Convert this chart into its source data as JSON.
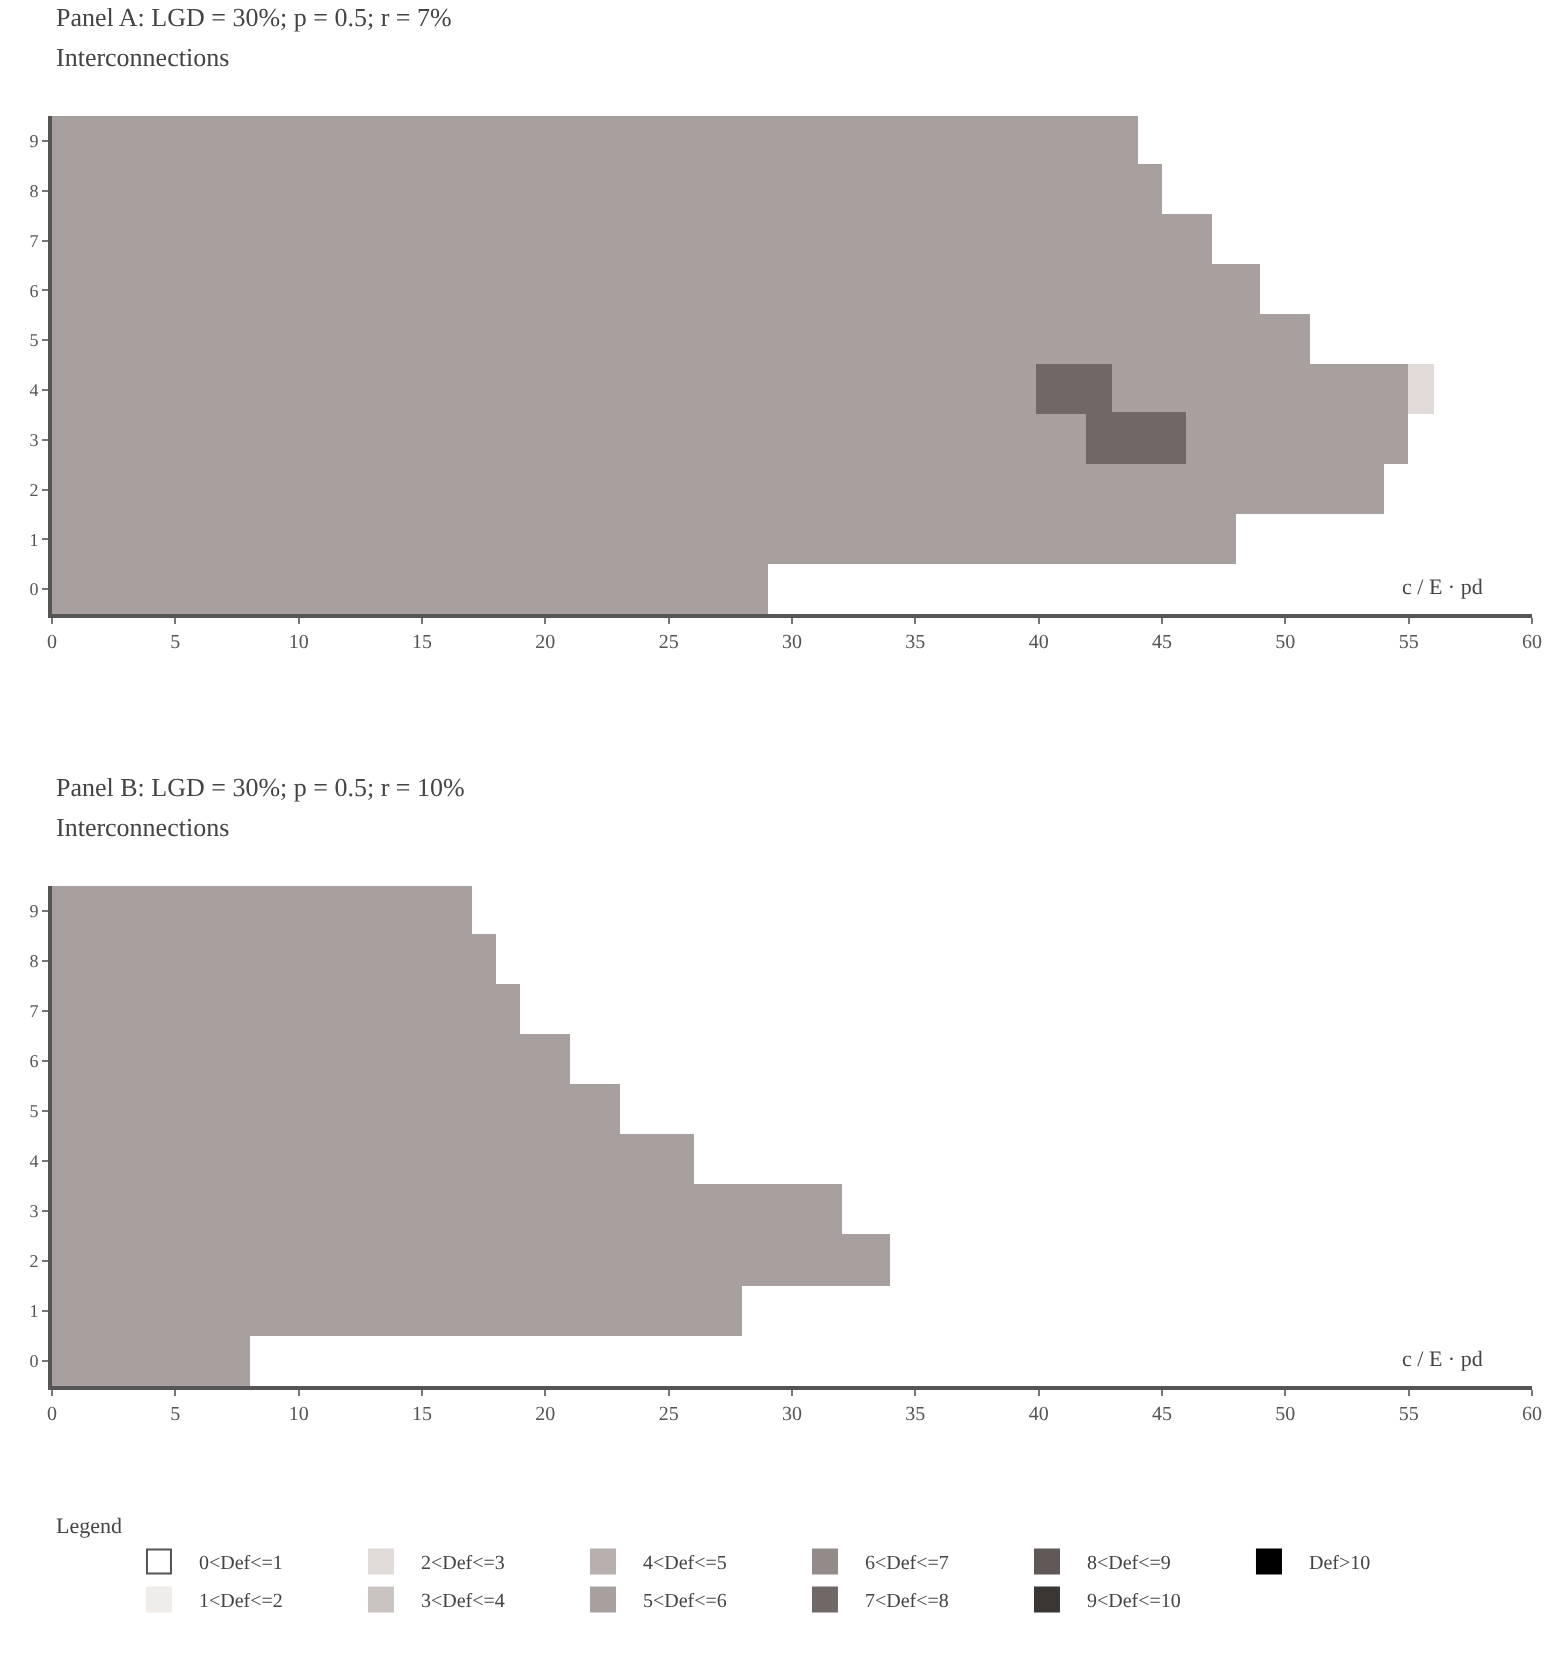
{
  "chart_data": [
    {
      "type": "bar",
      "orientation": "horizontal",
      "title": "Panel A: LGD = 30%; p = 0.5; r = 7%",
      "ylabel": "Interconnections",
      "xlabel": "c / E · pd",
      "categories": [
        "9",
        "8",
        "7",
        "6",
        "5",
        "4",
        "3",
        "2",
        "1",
        "0"
      ],
      "xlim": [
        0,
        60
      ],
      "xticks": [
        0,
        5,
        10,
        15,
        20,
        25,
        30,
        35,
        40,
        45,
        50,
        55,
        60
      ],
      "legend": "bottom",
      "legend_title": "Legend",
      "series": [
        {
          "name": "0<Def<=1",
          "color": "#ffffff",
          "values": [
            null,
            null,
            null,
            null,
            null,
            null,
            null,
            null,
            null,
            null
          ]
        },
        {
          "name": "2<Def<=3",
          "color": "#e0dad8",
          "values": [
            null,
            null,
            null,
            null,
            null,
            1,
            null,
            null,
            null,
            null
          ],
          "base": [
            null,
            null,
            null,
            null,
            null,
            55,
            null,
            null,
            null,
            null
          ]
        },
        {
          "name": "4<Def<=5",
          "color": "#b8b0ae",
          "values": [
            null,
            null,
            null,
            null,
            null,
            null,
            null,
            null,
            null,
            null
          ]
        },
        {
          "name": "6<Def<=7",
          "color": "#938b89",
          "values": [
            null,
            null,
            null,
            null,
            null,
            null,
            null,
            null,
            null,
            null
          ]
        },
        {
          "name": "8<Def<=9",
          "color": "#605856",
          "values": [
            null,
            null,
            null,
            null,
            null,
            null,
            null,
            null,
            null,
            null
          ]
        },
        {
          "name": "Def>10",
          "color": "#000000",
          "values": [
            null,
            null,
            null,
            null,
            null,
            null,
            null,
            null,
            null,
            null
          ]
        },
        {
          "name": "1<Def<=2",
          "color": "#efecea",
          "values": [
            null,
            null,
            null,
            null,
            null,
            null,
            null,
            null,
            null,
            null
          ]
        },
        {
          "name": "3<Def<=4",
          "color": "#cbc3c1",
          "values": [
            null,
            null,
            null,
            null,
            null,
            null,
            null,
            null,
            null,
            null
          ]
        },
        {
          "name": "5<Def<=6",
          "color": "#a8a09e",
          "values": [
            44,
            45,
            47,
            49,
            51,
            40,
            42,
            54,
            48,
            29
          ],
          "base": [
            0,
            0,
            0,
            0,
            0,
            0,
            0,
            0,
            0,
            0
          ]
        },
        {
          "color": "#a8a09e",
          "values": [
            null,
            null,
            null,
            null,
            null,
            12,
            9,
            null,
            null,
            null
          ],
          "base": [
            null,
            null,
            null,
            null,
            null,
            43,
            46,
            null,
            null,
            null
          ]
        },
        {
          "name": "7<Def<=8",
          "color": "#6f6866",
          "values": [
            null,
            null,
            null,
            null,
            null,
            3,
            4,
            null,
            null,
            null
          ],
          "base": [
            null,
            null,
            null,
            null,
            null,
            40,
            42,
            null,
            null,
            null
          ]
        },
        {
          "name": "9<Def<=10",
          "color": "#3a3634",
          "values": [
            null,
            null,
            null,
            null,
            null,
            null,
            null,
            null,
            null,
            null
          ]
        }
      ]
    },
    {
      "type": "bar",
      "orientation": "horizontal",
      "title": "Panel B: LGD = 30%; p = 0.5; r = 10%",
      "ylabel": "Interconnections",
      "xlabel": "c / E · pd",
      "categories": [
        "9",
        "8",
        "7",
        "6",
        "5",
        "4",
        "3",
        "2",
        "1",
        "0"
      ],
      "xlim": [
        0,
        60
      ],
      "xticks": [
        0,
        5,
        10,
        15,
        20,
        25,
        30,
        35,
        40,
        45,
        50,
        55,
        60
      ],
      "legend": "bottom",
      "series": [
        {
          "name": "5<Def<=6",
          "color": "#a8a09e",
          "values": [
            17,
            18,
            19,
            21,
            23,
            26,
            32,
            34,
            28,
            8
          ],
          "base": [
            0,
            0,
            0,
            0,
            0,
            0,
            0,
            0,
            0,
            0
          ]
        }
      ]
    }
  ]
}
